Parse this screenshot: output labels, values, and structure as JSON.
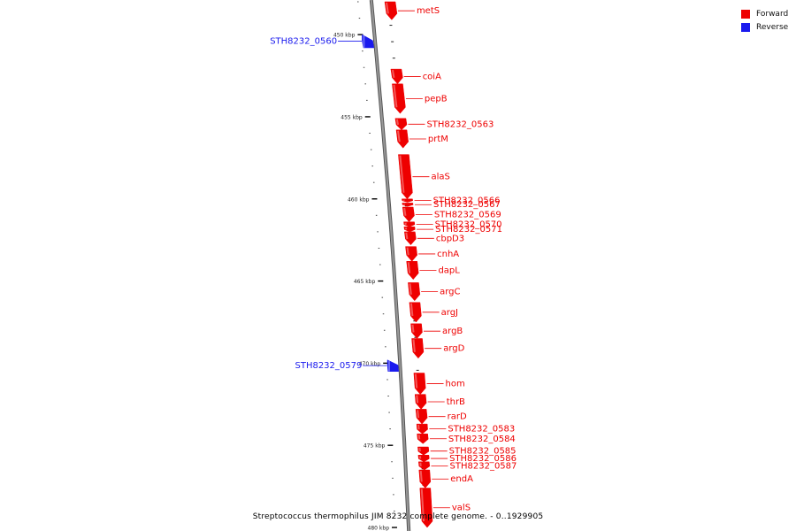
{
  "colors": {
    "forward": "#ee0000",
    "reverse": "#1a1aee",
    "backbone": "#999999"
  },
  "legend": [
    {
      "label": "Forward",
      "color": "#ee0000"
    },
    {
      "label": "Reverse",
      "color": "#1a1aee"
    }
  ],
  "caption": "Streptococcus thermophilus JIM 8232 complete genome. - 0..1929905",
  "scale": {
    "range_kbp": [
      448,
      480
    ],
    "major_ticks": [
      450,
      455,
      460,
      465,
      470,
      475,
      480
    ],
    "unit": "kbp"
  },
  "genes": [
    {
      "name": "metS",
      "strand": "forward",
      "start_kbp": 448.0,
      "end_kbp": 449.1
    },
    {
      "name": "STH8232_0560",
      "strand": "reverse",
      "start_kbp": 450.0,
      "end_kbp": 450.8
    },
    {
      "name": "coiA",
      "strand": "forward",
      "start_kbp": 452.1,
      "end_kbp": 453.0
    },
    {
      "name": "pepB",
      "strand": "forward",
      "start_kbp": 453.0,
      "end_kbp": 454.8
    },
    {
      "name": "STH8232_0563",
      "strand": "forward",
      "start_kbp": 455.1,
      "end_kbp": 455.8
    },
    {
      "name": "prtM",
      "strand": "forward",
      "start_kbp": 455.8,
      "end_kbp": 456.9
    },
    {
      "name": "alaS",
      "strand": "forward",
      "start_kbp": 457.3,
      "end_kbp": 460.0
    },
    {
      "name": "STH8232_0566",
      "strand": "forward",
      "start_kbp": 460.0,
      "end_kbp": 460.2
    },
    {
      "name": "STH8232_0567",
      "strand": "forward",
      "start_kbp": 460.25,
      "end_kbp": 460.45
    },
    {
      "name": "STH8232_0569",
      "strand": "forward",
      "start_kbp": 460.5,
      "end_kbp": 461.4
    },
    {
      "name": "STH8232_0570",
      "strand": "forward",
      "start_kbp": 461.4,
      "end_kbp": 461.7
    },
    {
      "name": "STH8232_0571",
      "strand": "forward",
      "start_kbp": 461.7,
      "end_kbp": 462.0
    },
    {
      "name": "cbpD3",
      "strand": "forward",
      "start_kbp": 462.0,
      "end_kbp": 462.8
    },
    {
      "name": "cnhA",
      "strand": "forward",
      "start_kbp": 462.9,
      "end_kbp": 463.8
    },
    {
      "name": "dapL",
      "strand": "forward",
      "start_kbp": 463.8,
      "end_kbp": 464.9
    },
    {
      "name": "argC",
      "strand": "forward",
      "start_kbp": 465.1,
      "end_kbp": 466.2
    },
    {
      "name": "argJ",
      "strand": "forward",
      "start_kbp": 466.3,
      "end_kbp": 467.5
    },
    {
      "name": "argB",
      "strand": "forward",
      "start_kbp": 467.6,
      "end_kbp": 468.5
    },
    {
      "name": "argD",
      "strand": "forward",
      "start_kbp": 468.5,
      "end_kbp": 469.7
    },
    {
      "name": "STH8232_0579",
      "strand": "reverse",
      "start_kbp": 469.8,
      "end_kbp": 470.5
    },
    {
      "name": "hom",
      "strand": "forward",
      "start_kbp": 470.6,
      "end_kbp": 471.9
    },
    {
      "name": "thrB",
      "strand": "forward",
      "start_kbp": 471.9,
      "end_kbp": 472.8
    },
    {
      "name": "rarD",
      "strand": "forward",
      "start_kbp": 472.8,
      "end_kbp": 473.7
    },
    {
      "name": "STH8232_0583",
      "strand": "forward",
      "start_kbp": 473.7,
      "end_kbp": 474.3
    },
    {
      "name": "STH8232_0584",
      "strand": "forward",
      "start_kbp": 474.3,
      "end_kbp": 474.9
    },
    {
      "name": "STH8232_0585",
      "strand": "forward",
      "start_kbp": 475.1,
      "end_kbp": 475.6
    },
    {
      "name": "STH8232_0586",
      "strand": "forward",
      "start_kbp": 475.6,
      "end_kbp": 476.0
    },
    {
      "name": "STH8232_0587",
      "strand": "forward",
      "start_kbp": 476.0,
      "end_kbp": 476.5
    },
    {
      "name": "endA",
      "strand": "forward",
      "start_kbp": 476.5,
      "end_kbp": 477.6
    },
    {
      "name": "valS",
      "strand": "forward",
      "start_kbp": 477.6,
      "end_kbp": 480.0
    }
  ]
}
